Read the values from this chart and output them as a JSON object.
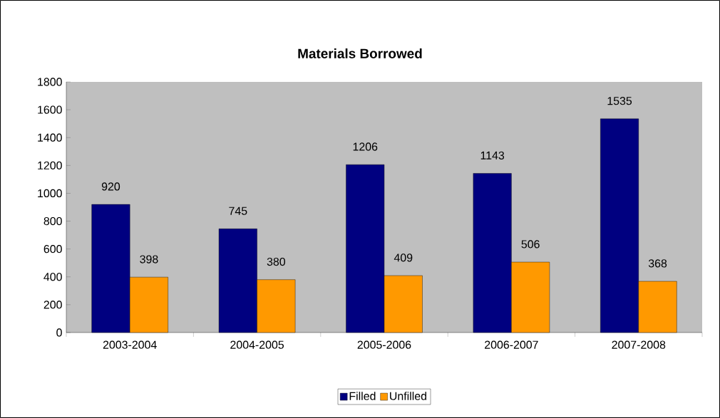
{
  "chart_data": {
    "type": "bar",
    "title": "Materials Borrowed",
    "categories": [
      "2003-2004",
      "2004-2005",
      "2005-2006",
      "2006-2007",
      "2007-2008"
    ],
    "series": [
      {
        "name": "Filled",
        "color": "#000080",
        "values": [
          920,
          745,
          1206,
          1143,
          1535
        ]
      },
      {
        "name": "Unfilled",
        "color": "#ff9900",
        "values": [
          398,
          380,
          409,
          506,
          368
        ]
      }
    ],
    "ylim": [
      0,
      1800
    ],
    "yticks": [
      0,
      200,
      400,
      600,
      800,
      1000,
      1200,
      1400,
      1600,
      1800
    ],
    "data_labels": true,
    "legend": "bottom"
  }
}
